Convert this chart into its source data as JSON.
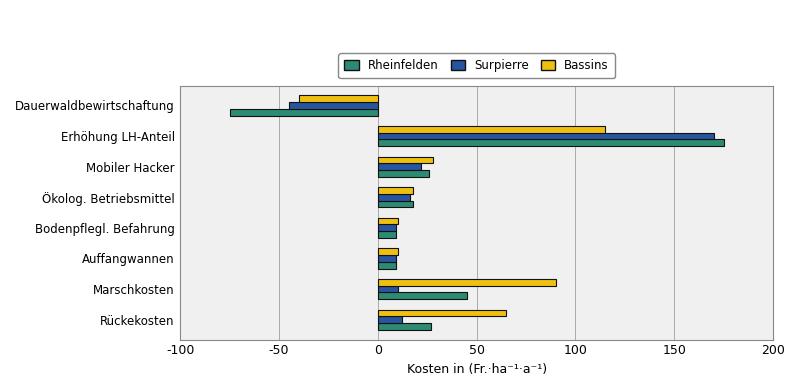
{
  "categories": [
    "Dauerwaldbewirtschaftung",
    "Erhöhung LH-Anteil",
    "Mobiler Hacker",
    "Ökolog. Betriebsmittel",
    "Bodenpflegl. Befahrung",
    "Auffangwannen",
    "Marschkosten",
    "Rückekosten"
  ],
  "series": {
    "Rheinfelden": [
      -75,
      175,
      26,
      18,
      9,
      9,
      45,
      27
    ],
    "Surpierre": [
      -45,
      170,
      22,
      16,
      9,
      9,
      10,
      12
    ],
    "Bassins": [
      -40,
      115,
      28,
      18,
      10,
      10,
      90,
      65
    ]
  },
  "colors": {
    "Rheinfelden": "#2e8b73",
    "Surpierre": "#2855a0",
    "Bassins": "#f0c010"
  },
  "legend_order": [
    "Rheinfelden",
    "Surpierre",
    "Bassins"
  ],
  "bar_order": [
    "Rheinfelden",
    "Surpierre",
    "Bassins"
  ],
  "xlabel": "Kosten in (Fr.·ha⁻¹·a⁻¹)",
  "xlim": [
    -100,
    200
  ],
  "xticks": [
    -100,
    -50,
    0,
    50,
    100,
    150,
    200
  ],
  "background_color": "#ffffff",
  "plot_bg_color": "#f0f0f0",
  "grid_color": "#aaaaaa",
  "bar_edge_color": "#111111",
  "bar_height": 0.22,
  "label_fontsize": 8.5,
  "tick_fontsize": 9,
  "xlabel_fontsize": 9
}
